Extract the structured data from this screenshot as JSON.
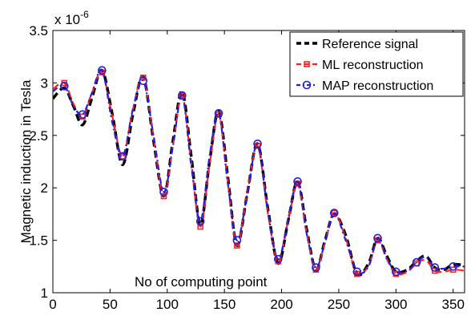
{
  "chart_data": {
    "type": "line",
    "title": "",
    "xlabel": "",
    "ylabel": "Magnetic induction in Tesla",
    "y_multiplier_label": "x 10",
    "y_multiplier_exponent": "-6",
    "annotation": "No of computing point",
    "xlim": [
      0,
      360
    ],
    "ylim": [
      1,
      3.5
    ],
    "xticks": [
      0,
      50,
      100,
      150,
      200,
      250,
      300,
      350
    ],
    "yticks": [
      1,
      1.5,
      2,
      2.5,
      3,
      3.5
    ],
    "ytick_labels": [
      "1",
      "1.5",
      "2",
      "2.5",
      "3",
      "3.5"
    ],
    "grid": false,
    "legend_position": "top-right",
    "series": [
      {
        "name": "Reference signal",
        "color": "#000000",
        "style": "dashed",
        "marker": "none",
        "x": [
          0,
          10,
          18,
          26,
          34,
          43,
          52,
          61,
          70,
          79,
          88,
          97,
          105,
          113,
          121,
          129,
          137,
          145,
          153,
          161,
          170,
          179,
          188,
          197,
          206,
          214,
          222,
          230,
          238,
          246,
          256,
          266,
          276,
          284,
          292,
          300,
          310,
          318,
          326,
          334,
          342,
          350,
          360
        ],
        "y": [
          2.85,
          2.95,
          2.78,
          2.6,
          2.85,
          3.12,
          2.7,
          2.22,
          2.7,
          3.06,
          2.45,
          1.92,
          2.45,
          2.92,
          2.3,
          1.65,
          2.25,
          2.73,
          2.1,
          1.45,
          1.95,
          2.42,
          1.8,
          1.28,
          1.7,
          2.06,
          1.6,
          1.22,
          1.5,
          1.75,
          1.55,
          1.18,
          1.28,
          1.52,
          1.35,
          1.2,
          1.22,
          1.3,
          1.35,
          1.24,
          1.22,
          1.27,
          1.26
        ]
      },
      {
        "name": "ML reconstruction",
        "color": "#ff2020",
        "style": "dashed",
        "marker": "square",
        "x": [
          0,
          10,
          18,
          26,
          34,
          43,
          52,
          61,
          70,
          79,
          88,
          97,
          105,
          113,
          121,
          129,
          137,
          145,
          153,
          161,
          170,
          179,
          188,
          197,
          206,
          214,
          222,
          230,
          238,
          246,
          256,
          266,
          276,
          284,
          292,
          300,
          310,
          318,
          326,
          334,
          342,
          350,
          360
        ],
        "y": [
          2.94,
          3.0,
          2.8,
          2.68,
          2.9,
          3.1,
          2.68,
          2.3,
          2.75,
          3.05,
          2.48,
          1.92,
          2.4,
          2.88,
          2.24,
          1.63,
          2.22,
          2.7,
          2.05,
          1.45,
          1.96,
          2.4,
          1.76,
          1.3,
          1.7,
          2.04,
          1.56,
          1.22,
          1.48,
          1.76,
          1.52,
          1.18,
          1.26,
          1.5,
          1.32,
          1.18,
          1.2,
          1.28,
          1.31,
          1.21,
          1.2,
          1.22,
          1.21
        ]
      },
      {
        "name": "MAP reconstruction",
        "color": "#2020dd",
        "style": "dashdot",
        "marker": "circle",
        "x": [
          0,
          10,
          18,
          26,
          34,
          43,
          52,
          61,
          70,
          79,
          88,
          97,
          105,
          113,
          121,
          129,
          137,
          145,
          153,
          161,
          170,
          179,
          188,
          197,
          206,
          214,
          222,
          230,
          238,
          246,
          256,
          266,
          276,
          284,
          292,
          300,
          310,
          318,
          326,
          334,
          342,
          350,
          360
        ],
        "y": [
          2.92,
          2.97,
          2.78,
          2.7,
          2.9,
          3.12,
          2.62,
          2.3,
          2.75,
          3.02,
          2.5,
          1.96,
          2.4,
          2.88,
          2.21,
          1.68,
          2.3,
          2.71,
          2.04,
          1.5,
          1.94,
          2.42,
          1.78,
          1.32,
          1.72,
          2.06,
          1.56,
          1.24,
          1.48,
          1.76,
          1.5,
          1.2,
          1.25,
          1.52,
          1.33,
          1.2,
          1.21,
          1.29,
          1.34,
          1.24,
          1.23,
          1.25,
          1.25
        ]
      }
    ]
  }
}
